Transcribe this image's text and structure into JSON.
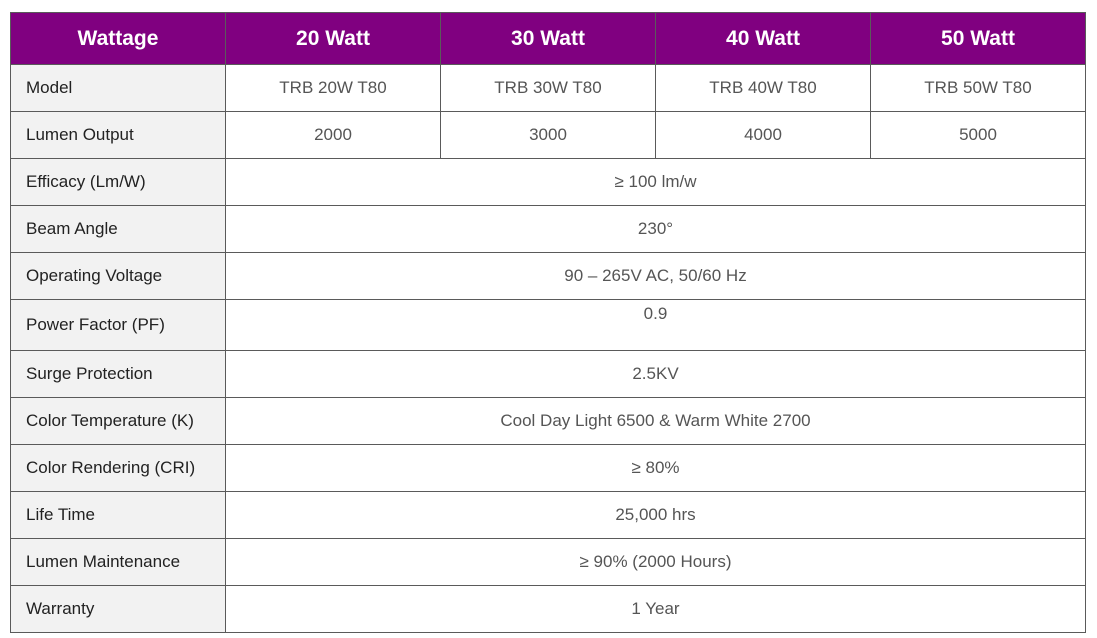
{
  "header": {
    "label": "Wattage",
    "columns": [
      "20 Watt",
      "30 Watt",
      "40 Watt",
      "50 Watt"
    ]
  },
  "colors": {
    "header_background": "#800080",
    "header_text": "#ffffff",
    "label_background": "#f2f2f2",
    "border": "#5a5a5a"
  },
  "rows": {
    "model": {
      "label": "Model",
      "values": [
        "TRB 20W T80",
        "TRB 30W T80",
        "TRB 40W T80",
        "TRB 50W T80"
      ]
    },
    "lumen_output": {
      "label": "Lumen Output",
      "values": [
        "2000",
        "3000",
        "4000",
        "5000"
      ]
    },
    "efficacy": {
      "label": "Efficacy (Lm/W)",
      "value": "≥ 100 lm/w"
    },
    "beam_angle": {
      "label": "Beam Angle",
      "value": "230°"
    },
    "operating_voltage": {
      "label": "Operating Voltage",
      "value": "90 – 265V AC, 50/60 Hz"
    },
    "power_factor": {
      "label": "Power Factor (PF)",
      "value": "0.9"
    },
    "surge_protection": {
      "label": "Surge Protection",
      "value": "2.5KV"
    },
    "color_temperature": {
      "label": "Color Temperature (K)",
      "value": "Cool Day Light 6500 & Warm White 2700"
    },
    "color_rendering": {
      "label": "Color Rendering (CRI)",
      "value": "≥ 80%"
    },
    "life_time": {
      "label": "Life Time",
      "value": "25,000 hrs"
    },
    "lumen_maintenance": {
      "label": "Lumen Maintenance",
      "value": "≥ 90% (2000 Hours)"
    },
    "warranty": {
      "label": "Warranty",
      "value": "1 Year"
    }
  }
}
